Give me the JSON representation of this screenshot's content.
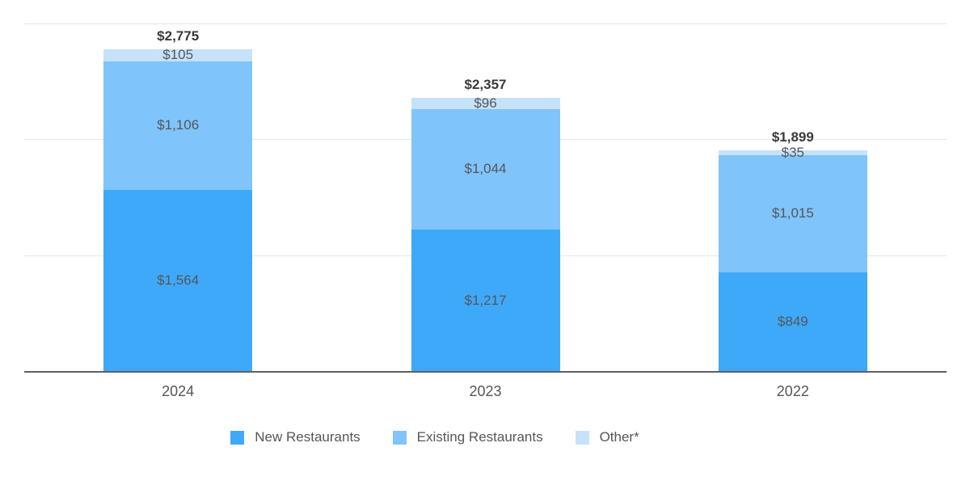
{
  "chart": {
    "background_color": "#ffffff",
    "gridline_color": "#e7e7e7",
    "axis_color": "#606060",
    "segment_label_color": "#55565a",
    "total_label_color": "#3b3b3b"
  },
  "chart_data": {
    "type": "bar",
    "stacked": true,
    "categories": [
      "2024",
      "2023",
      "2022"
    ],
    "series": [
      {
        "name": "New Restaurants",
        "color": "#3EA9F8",
        "values": [
          1564,
          1217,
          849
        ],
        "labels": [
          "$1,564",
          "$1,217",
          "$849"
        ]
      },
      {
        "name": "Existing Restaurants",
        "color": "#7FC4FA",
        "values": [
          1106,
          1044,
          1015
        ],
        "labels": [
          "$1,106",
          "$1,044",
          "$1,015"
        ]
      },
      {
        "name": "Other*",
        "color": "#C6E2FB",
        "values": [
          105,
          96,
          35
        ],
        "labels": [
          "$105",
          "$96",
          "$35"
        ]
      }
    ],
    "totals": {
      "values": [
        2775,
        2357,
        1899
      ],
      "labels": [
        "$2,775",
        "$2,357",
        "$1,899"
      ]
    },
    "title": "",
    "xlabel": "",
    "ylabel": "",
    "ylim": [
      0,
      3000
    ],
    "grid": true,
    "gridline_values": [
      1000,
      2000,
      3000
    ],
    "yticks_labeled": false,
    "legend_position": "bottom"
  }
}
